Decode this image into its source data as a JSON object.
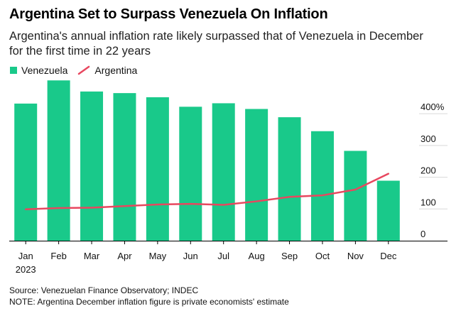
{
  "header": {
    "title": "Argentina Set to Surpass Venezuela On Inflation",
    "subtitle": "Argentina's annual inflation rate likely surpassed that of Venezuela in December for the first time in 22 years"
  },
  "footer": {
    "source": "Source: Venezuelan Finance Observatory; INDEC",
    "note": "NOTE: Argentina December inflation figure is private economists' estimate"
  },
  "colors": {
    "venezuela": "#19c98a",
    "argentina": "#e8475f",
    "gridline": "#d9d9d9",
    "axis": "#000000"
  },
  "chart_data": {
    "type": "bar",
    "categories": [
      "Jan",
      "Feb",
      "Mar",
      "Apr",
      "May",
      "Jun",
      "Jul",
      "Aug",
      "Sep",
      "Oct",
      "Nov",
      "Dec"
    ],
    "year_label": "2023",
    "series": [
      {
        "name": "Venezuela",
        "type": "bar",
        "values": [
          432,
          505,
          470,
          465,
          452,
          422,
          433,
          415,
          389,
          345,
          283,
          189
        ]
      },
      {
        "name": "Argentina",
        "type": "line",
        "values": [
          99,
          103,
          104,
          109,
          114,
          116,
          113,
          124,
          138,
          143,
          161,
          211
        ]
      }
    ],
    "yticks": [
      {
        "value": 0,
        "label": "0"
      },
      {
        "value": 100,
        "label": "100"
      },
      {
        "value": 200,
        "label": "200"
      },
      {
        "value": 300,
        "label": "300"
      },
      {
        "value": 400,
        "label": "400%"
      }
    ],
    "ylim": [
      0,
      510
    ],
    "legend_position": "top-left",
    "grid": true
  }
}
